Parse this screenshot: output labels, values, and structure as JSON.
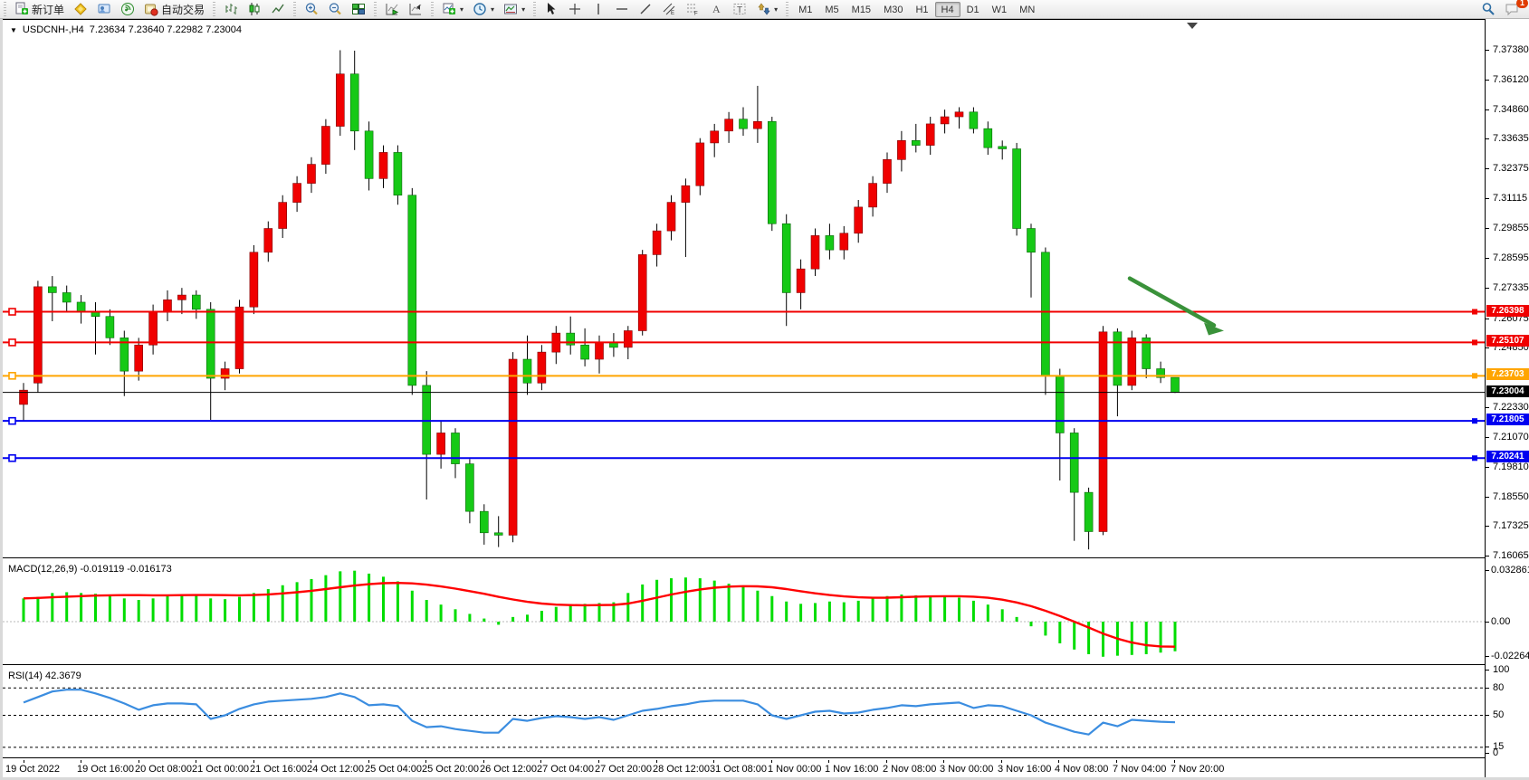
{
  "toolbar": {
    "new_order_label": "新订单",
    "auto_trading_label": "自动交易",
    "timeframes": [
      "M1",
      "M5",
      "M15",
      "M30",
      "H1",
      "H4",
      "D1",
      "W1",
      "MN"
    ],
    "active_timeframe": "H4",
    "chat_badge_count": "1"
  },
  "chart_header": {
    "symbol_period": "USDCNH-,H4",
    "ohlc_readout": "7.23634 7.23640 7.22982 7.23004"
  },
  "price_axis_ticks": [
    "7.37380",
    "7.36120",
    "7.34860",
    "7.33635",
    "7.32375",
    "7.31115",
    "7.29855",
    "7.28595",
    "7.27335",
    "7.26075",
    "7.24850",
    "7.22330",
    "7.21070",
    "7.19810",
    "7.18550",
    "7.17325",
    "7.16065"
  ],
  "levels": [
    {
      "label": "7.26398",
      "value": 7.26398,
      "color": "#f00000"
    },
    {
      "label": "7.25107",
      "value": 7.25107,
      "color": "#f00000"
    },
    {
      "label": "7.23703",
      "value": 7.23703,
      "color": "#ffa500"
    },
    {
      "label": "7.21805",
      "value": 7.21805,
      "color": "#0000f0"
    },
    {
      "label": "7.20241",
      "value": 7.20241,
      "color": "#0000f0"
    }
  ],
  "current_price": {
    "label": "7.23004",
    "value": 7.23004,
    "color": "#000000"
  },
  "macd_panel": {
    "label": "MACD(12,26,9) -0.019119 -0.016173",
    "axis": [
      {
        "label": "0.032861",
        "value": 0.032861
      },
      {
        "label": "0.00",
        "value": 0
      },
      {
        "label": "-0.022641",
        "value": -0.022641
      }
    ]
  },
  "rsi_panel": {
    "label": "RSI(14) 42.3679",
    "axis": [
      {
        "label": "100",
        "value": 100
      },
      {
        "label": "80",
        "value": 80
      },
      {
        "label": "50",
        "value": 50
      },
      {
        "label": "15",
        "value": 15
      },
      {
        "label": "0",
        "value": 0
      }
    ],
    "dashed_levels": [
      80,
      50,
      15
    ]
  },
  "time_axis_labels": [
    "19 Oct 2022",
    "19 Oct 16:00",
    "20 Oct 08:00",
    "21 Oct 00:00",
    "21 Oct 16:00",
    "24 Oct 12:00",
    "25 Oct 04:00",
    "25 Oct 20:00",
    "26 Oct 12:00",
    "27 Oct 04:00",
    "27 Oct 20:00",
    "28 Oct 12:00",
    "31 Oct 08:00",
    "1 Nov 00:00",
    "1 Nov 16:00",
    "2 Nov 08:00",
    "3 Nov 00:00",
    "3 Nov 16:00",
    "4 Nov 08:00",
    "7 Nov 04:00",
    "7 Nov 20:00"
  ],
  "chart_data": {
    "type": "candlestick",
    "title": "USDCNH-,H4",
    "symbol": "USDCNH-",
    "timeframe": "H4",
    "ylim": [
      7.16065,
      7.3738
    ],
    "bull_color": "#f00000",
    "bear_color": "#16c916",
    "times": [
      "19 Oct 00:00",
      "19 Oct 04:00",
      "19 Oct 08:00",
      "19 Oct 12:00",
      "19 Oct 16:00",
      "19 Oct 20:00",
      "20 Oct 00:00",
      "20 Oct 04:00",
      "20 Oct 08:00",
      "20 Oct 12:00",
      "20 Oct 16:00",
      "20 Oct 20:00",
      "21 Oct 00:00",
      "21 Oct 04:00",
      "21 Oct 08:00",
      "21 Oct 12:00",
      "21 Oct 16:00",
      "21 Oct 20:00",
      "24 Oct 04:00",
      "24 Oct 08:00",
      "24 Oct 12:00",
      "24 Oct 16:00",
      "24 Oct 20:00",
      "25 Oct 00:00",
      "25 Oct 04:00",
      "25 Oct 08:00",
      "25 Oct 12:00",
      "25 Oct 16:00",
      "25 Oct 20:00",
      "26 Oct 00:00",
      "26 Oct 04:00",
      "26 Oct 08:00",
      "26 Oct 12:00",
      "26 Oct 16:00",
      "26 Oct 20:00",
      "27 Oct 00:00",
      "27 Oct 04:00",
      "27 Oct 08:00",
      "27 Oct 12:00",
      "27 Oct 16:00",
      "27 Oct 20:00",
      "28 Oct 00:00",
      "28 Oct 04:00",
      "28 Oct 08:00",
      "28 Oct 12:00",
      "28 Oct 16:00",
      "28 Oct 20:00",
      "31 Oct 04:00",
      "31 Oct 08:00",
      "31 Oct 12:00",
      "31 Oct 16:00",
      "31 Oct 20:00",
      "1 Nov 00:00",
      "1 Nov 04:00",
      "1 Nov 08:00",
      "1 Nov 12:00",
      "1 Nov 16:00",
      "1 Nov 20:00",
      "2 Nov 00:00",
      "2 Nov 04:00",
      "2 Nov 08:00",
      "2 Nov 12:00",
      "2 Nov 16:00",
      "2 Nov 20:00",
      "3 Nov 00:00",
      "3 Nov 04:00",
      "3 Nov 08:00",
      "3 Nov 12:00",
      "3 Nov 16:00",
      "3 Nov 20:00",
      "4 Nov 00:00",
      "4 Nov 04:00",
      "4 Nov 08:00",
      "4 Nov 12:00",
      "4 Nov 16:00",
      "7 Nov 00:00",
      "7 Nov 04:00",
      "7 Nov 08:00",
      "7 Nov 12:00",
      "7 Nov 16:00",
      "7 Nov 20:00"
    ],
    "ohlc": [
      [
        7.225,
        7.234,
        7.218,
        7.231
      ],
      [
        7.234,
        7.277,
        7.23,
        7.2745
      ],
      [
        7.2745,
        7.279,
        7.26,
        7.272
      ],
      [
        7.272,
        7.275,
        7.264,
        7.268
      ],
      [
        7.268,
        7.271,
        7.259,
        7.264
      ],
      [
        7.264,
        7.268,
        7.246,
        7.262
      ],
      [
        7.262,
        7.265,
        7.25,
        7.253
      ],
      [
        7.253,
        7.256,
        7.2285,
        7.239
      ],
      [
        7.239,
        7.253,
        7.235,
        7.25
      ],
      [
        7.25,
        7.267,
        7.246,
        7.264
      ],
      [
        7.264,
        7.273,
        7.26,
        7.269
      ],
      [
        7.269,
        7.274,
        7.263,
        7.271
      ],
      [
        7.271,
        7.273,
        7.261,
        7.265
      ],
      [
        7.265,
        7.268,
        7.2185,
        7.236
      ],
      [
        7.236,
        7.243,
        7.231,
        7.24
      ],
      [
        7.24,
        7.269,
        7.238,
        7.266
      ],
      [
        7.266,
        7.292,
        7.263,
        7.289
      ],
      [
        7.289,
        7.302,
        7.285,
        7.299
      ],
      [
        7.299,
        7.313,
        7.295,
        7.31
      ],
      [
        7.31,
        7.321,
        7.306,
        7.318
      ],
      [
        7.318,
        7.329,
        7.314,
        7.326
      ],
      [
        7.326,
        7.345,
        7.322,
        7.342
      ],
      [
        7.342,
        7.374,
        7.338,
        7.364
      ],
      [
        7.364,
        7.3738,
        7.332,
        7.34
      ],
      [
        7.34,
        7.344,
        7.315,
        7.32
      ],
      [
        7.32,
        7.334,
        7.316,
        7.331
      ],
      [
        7.331,
        7.334,
        7.309,
        7.313
      ],
      [
        7.313,
        7.316,
        7.229,
        7.233
      ],
      [
        7.233,
        7.239,
        7.185,
        7.204
      ],
      [
        7.204,
        7.218,
        7.198,
        7.213
      ],
      [
        7.213,
        7.215,
        7.194,
        7.2
      ],
      [
        7.2,
        7.202,
        7.175,
        7.18
      ],
      [
        7.18,
        7.183,
        7.166,
        7.171
      ],
      [
        7.171,
        7.178,
        7.165,
        7.17
      ],
      [
        7.17,
        7.247,
        7.167,
        7.244
      ],
      [
        7.244,
        7.254,
        7.229,
        7.234
      ],
      [
        7.234,
        7.25,
        7.231,
        7.247
      ],
      [
        7.247,
        7.258,
        7.242,
        7.255
      ],
      [
        7.255,
        7.262,
        7.246,
        7.25
      ],
      [
        7.25,
        7.257,
        7.241,
        7.244
      ],
      [
        7.244,
        7.254,
        7.238,
        7.251
      ],
      [
        7.251,
        7.255,
        7.245,
        7.249
      ],
      [
        7.249,
        7.258,
        7.244,
        7.256
      ],
      [
        7.256,
        7.29,
        7.254,
        7.288
      ],
      [
        7.288,
        7.301,
        7.283,
        7.298
      ],
      [
        7.298,
        7.313,
        7.294,
        7.31
      ],
      [
        7.31,
        7.32,
        7.287,
        7.317
      ],
      [
        7.317,
        7.337,
        7.313,
        7.335
      ],
      [
        7.335,
        7.343,
        7.329,
        7.34
      ],
      [
        7.34,
        7.348,
        7.335,
        7.345
      ],
      [
        7.345,
        7.35,
        7.338,
        7.341
      ],
      [
        7.341,
        7.359,
        7.335,
        7.344
      ],
      [
        7.344,
        7.346,
        7.298,
        7.301
      ],
      [
        7.301,
        7.305,
        7.258,
        7.272
      ],
      [
        7.272,
        7.286,
        7.265,
        7.282
      ],
      [
        7.282,
        7.299,
        7.279,
        7.296
      ],
      [
        7.296,
        7.301,
        7.286,
        7.29
      ],
      [
        7.29,
        7.3,
        7.286,
        7.297
      ],
      [
        7.297,
        7.311,
        7.293,
        7.308
      ],
      [
        7.308,
        7.321,
        7.304,
        7.318
      ],
      [
        7.318,
        7.331,
        7.314,
        7.328
      ],
      [
        7.328,
        7.34,
        7.323,
        7.336
      ],
      [
        7.336,
        7.343,
        7.331,
        7.334
      ],
      [
        7.334,
        7.346,
        7.33,
        7.343
      ],
      [
        7.343,
        7.349,
        7.339,
        7.346
      ],
      [
        7.346,
        7.35,
        7.341,
        7.348
      ],
      [
        7.348,
        7.35,
        7.339,
        7.341
      ],
      [
        7.341,
        7.344,
        7.33,
        7.333
      ],
      [
        7.3335,
        7.336,
        7.328,
        7.3325
      ],
      [
        7.3325,
        7.335,
        7.296,
        7.299
      ],
      [
        7.299,
        7.301,
        7.27,
        7.289
      ],
      [
        7.289,
        7.291,
        7.229,
        7.237
      ],
      [
        7.237,
        7.24,
        7.193,
        7.213
      ],
      [
        7.213,
        7.215,
        7.1676,
        7.188
      ],
      [
        7.188,
        7.19,
        7.164,
        7.1715
      ],
      [
        7.1715,
        7.258,
        7.17,
        7.2555
      ],
      [
        7.2555,
        7.257,
        7.22,
        7.233
      ],
      [
        7.233,
        7.256,
        7.231,
        7.253
      ],
      [
        7.253,
        7.2545,
        7.236,
        7.24
      ],
      [
        7.24,
        7.243,
        7.234,
        7.2363
      ],
      [
        7.23634,
        7.2364,
        7.22982,
        7.23004
      ]
    ],
    "indicators": {
      "macd": {
        "params": "12,26,9",
        "current_macd": -0.019119,
        "current_signal": -0.016173,
        "axis_range": [
          -0.022641,
          0.032861
        ],
        "histogram": [
          0.015,
          0.016,
          0.0185,
          0.019,
          0.0185,
          0.018,
          0.0165,
          0.015,
          0.014,
          0.015,
          0.0165,
          0.0175,
          0.017,
          0.015,
          0.0145,
          0.016,
          0.0185,
          0.021,
          0.0235,
          0.0255,
          0.0275,
          0.03,
          0.0325,
          0.0329,
          0.031,
          0.029,
          0.026,
          0.02,
          0.014,
          0.011,
          0.008,
          0.005,
          0.002,
          -0.002,
          0.003,
          0.0045,
          0.007,
          0.0095,
          0.011,
          0.0115,
          0.012,
          0.0125,
          0.0185,
          0.024,
          0.027,
          0.028,
          0.0285,
          0.028,
          0.0265,
          0.0245,
          0.0225,
          0.02,
          0.0165,
          0.013,
          0.0115,
          0.012,
          0.013,
          0.0125,
          0.0135,
          0.015,
          0.0165,
          0.0175,
          0.017,
          0.0165,
          0.016,
          0.0155,
          0.0135,
          0.011,
          0.008,
          0.003,
          -0.003,
          -0.009,
          -0.014,
          -0.018,
          -0.021,
          -0.022641,
          -0.022,
          -0.0215,
          -0.021,
          -0.02,
          -0.019119
        ],
        "signal": [
          0.015,
          0.0153,
          0.0157,
          0.0161,
          0.0165,
          0.0168,
          0.017,
          0.0171,
          0.0171,
          0.017,
          0.017,
          0.0171,
          0.0172,
          0.0172,
          0.0171,
          0.017,
          0.0172,
          0.0176,
          0.0182,
          0.019,
          0.0199,
          0.021,
          0.0222,
          0.0233,
          0.0242,
          0.0248,
          0.025,
          0.0247,
          0.0239,
          0.0227,
          0.0213,
          0.0197,
          0.018,
          0.016,
          0.0143,
          0.0128,
          0.0117,
          0.011,
          0.0107,
          0.0106,
          0.0107,
          0.0108,
          0.0117,
          0.0135,
          0.0155,
          0.0175,
          0.0193,
          0.0208,
          0.0219,
          0.0226,
          0.0229,
          0.0228,
          0.0222,
          0.021,
          0.0196,
          0.0183,
          0.0172,
          0.0163,
          0.0157,
          0.0154,
          0.0155,
          0.0158,
          0.0161,
          0.0163,
          0.0164,
          0.0164,
          0.0161,
          0.0154,
          0.0142,
          0.0124,
          0.01,
          0.007,
          0.0036,
          0.0,
          -0.0038,
          -0.0077,
          -0.011,
          -0.0135,
          -0.0152,
          -0.016,
          -0.016173
        ]
      },
      "rsi": {
        "params": "14",
        "current": 42.3679,
        "values": [
          64,
          70,
          76,
          78,
          78,
          74,
          69,
          63,
          56,
          61,
          63,
          63,
          62,
          46,
          50,
          57,
          62,
          65,
          66,
          67,
          68,
          70,
          74,
          70,
          61,
          62,
          60,
          44,
          37,
          38,
          35,
          33,
          31,
          31,
          46,
          44,
          47,
          49,
          48,
          46,
          48,
          45,
          50,
          55,
          57,
          60,
          62,
          65,
          66,
          66,
          66,
          62,
          50,
          46,
          50,
          54,
          55,
          52,
          53,
          56,
          58,
          61,
          60,
          62,
          63,
          64,
          58,
          61,
          60,
          55,
          50,
          42,
          37,
          32,
          29,
          42,
          38,
          45,
          44,
          43,
          42.3679
        ]
      }
    },
    "annotations": [
      {
        "type": "arrow",
        "color": "#3a923a",
        "from_price": 7.278,
        "to_price": 7.256,
        "note": "bearish-projection-arrow"
      }
    ]
  }
}
